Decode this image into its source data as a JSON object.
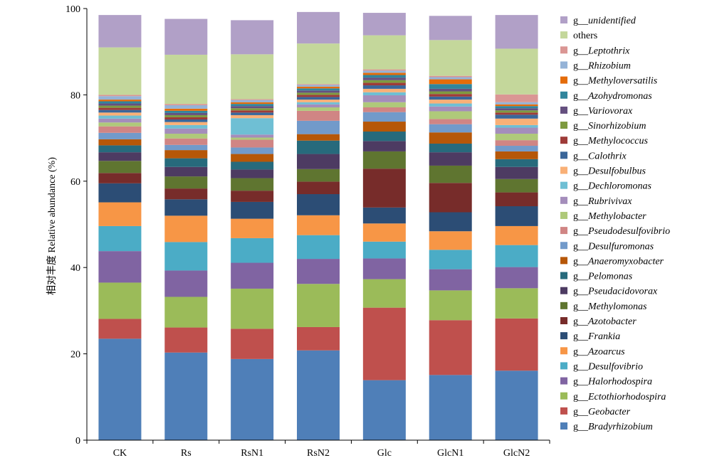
{
  "chart_data": {
    "type": "bar",
    "stacked": true,
    "title": "",
    "xlabel": "",
    "ylabel": "相对丰度 Relative abundance (%)",
    "ylim": [
      0,
      100
    ],
    "yticks": [
      0,
      20,
      40,
      60,
      80,
      100
    ],
    "grid": false,
    "legend_placement": "right",
    "categories": [
      "CK",
      "Rs",
      "RsN1",
      "RsN2",
      "Glc",
      "GlcN1",
      "GlcN2"
    ],
    "series": [
      {
        "name": "g__Bradyrhizobium",
        "color": "#4f7fb8",
        "values": [
          23.5,
          20.3,
          18.8,
          20.8,
          13.9,
          15.1,
          16.1
        ]
      },
      {
        "name": "g__Geobacter",
        "color": "#bf504d",
        "values": [
          4.6,
          5.8,
          7.0,
          5.4,
          16.8,
          12.7,
          12.1
        ]
      },
      {
        "name": "g__Ectothiorhodospira",
        "color": "#9bbb59",
        "values": [
          8.4,
          7.1,
          9.3,
          10.0,
          6.6,
          6.9,
          7.0
        ]
      },
      {
        "name": "g__Halorhodospira",
        "color": "#8064a2",
        "values": [
          7.3,
          6.1,
          6.0,
          5.8,
          4.8,
          4.9,
          4.9
        ]
      },
      {
        "name": "g__Desulfovibrio",
        "color": "#4bacc6",
        "values": [
          5.8,
          6.6,
          5.7,
          5.5,
          3.9,
          4.5,
          5.1
        ]
      },
      {
        "name": "g__Azoarcus",
        "color": "#f79646",
        "values": [
          5.5,
          6.1,
          4.5,
          4.6,
          4.2,
          4.3,
          4.4
        ]
      },
      {
        "name": "g__Frankia",
        "color": "#2c4d75",
        "values": [
          4.4,
          3.8,
          3.9,
          4.9,
          3.7,
          4.4,
          4.6
        ]
      },
      {
        "name": "g__Azotobacter",
        "color": "#772c2a",
        "values": [
          2.4,
          2.5,
          2.6,
          2.9,
          9.0,
          6.8,
          3.2
        ]
      },
      {
        "name": "g__Methylomonas",
        "color": "#5f7530",
        "values": [
          2.8,
          2.8,
          2.9,
          2.9,
          4.0,
          4.0,
          3.1
        ]
      },
      {
        "name": "g__Pseudacidovorax",
        "color": "#4d3b62",
        "values": [
          2.0,
          2.2,
          2.0,
          3.5,
          2.4,
          3.1,
          2.8
        ]
      },
      {
        "name": "g__Pelomonas",
        "color": "#276a7c",
        "values": [
          1.6,
          2.0,
          1.8,
          3.1,
          2.2,
          2.0,
          1.8
        ]
      },
      {
        "name": "g__Anaeromyxobacter",
        "color": "#b65708",
        "values": [
          1.4,
          1.9,
          1.8,
          1.5,
          2.3,
          2.6,
          1.8
        ]
      },
      {
        "name": "g__Desulfuromonas",
        "color": "#729aca",
        "values": [
          1.5,
          1.2,
          1.5,
          3.1,
          2.2,
          1.9,
          1.3
        ]
      },
      {
        "name": "g__Pseudodesulfovibrio",
        "color": "#d08584",
        "values": [
          1.5,
          1.5,
          1.8,
          2.3,
          1.1,
          1.2,
          1.3
        ]
      },
      {
        "name": "g__Methylobacter",
        "color": "#afc97a",
        "values": [
          0.9,
          1.1,
          0.5,
          0.8,
          1.2,
          1.8,
          1.5
        ]
      },
      {
        "name": "g__Rubrivivax",
        "color": "#a48dbb",
        "values": [
          0.9,
          1.2,
          0.7,
          0.7,
          1.6,
          1.1,
          1.4
        ]
      },
      {
        "name": "g__Dechloromonas",
        "color": "#6fbfd4",
        "values": [
          0.7,
          0.8,
          3.8,
          0.5,
          0.7,
          0.7,
          0.6
        ]
      },
      {
        "name": "g__Desulfobulbus",
        "color": "#f9b077",
        "values": [
          0.7,
          0.7,
          0.7,
          0.6,
          0.8,
          0.9,
          1.5
        ]
      },
      {
        "name": "g__Calothrix",
        "color": "#3a6699",
        "values": [
          0.6,
          0.6,
          0.6,
          0.6,
          0.8,
          0.7,
          0.9
        ]
      },
      {
        "name": "g__Methylococcus",
        "color": "#9e3b38",
        "values": [
          0.5,
          0.5,
          0.5,
          0.5,
          0.6,
          0.6,
          0.5
        ]
      },
      {
        "name": "g__Sinorhizobium",
        "color": "#7e9a40",
        "values": [
          0.5,
          0.5,
          0.5,
          0.5,
          0.6,
          0.6,
          0.5
        ]
      },
      {
        "name": "g__Variovorax",
        "color": "#65507f",
        "values": [
          0.5,
          0.5,
          0.5,
          0.5,
          0.6,
          0.6,
          0.5
        ]
      },
      {
        "name": "g__Azohydromonas",
        "color": "#31859c",
        "values": [
          0.5,
          0.5,
          0.5,
          0.5,
          0.6,
          1.1,
          0.5
        ]
      },
      {
        "name": "g__Methyloversatilis",
        "color": "#e46c0a",
        "values": [
          0.4,
          0.5,
          0.4,
          0.4,
          0.5,
          1.1,
          0.4
        ]
      },
      {
        "name": "g__Rhizobium",
        "color": "#95b3d7",
        "values": [
          0.8,
          0.8,
          0.5,
          0.4,
          0.5,
          0.5,
          0.5
        ]
      },
      {
        "name": "g__Leptothrix",
        "color": "#da9694",
        "values": [
          0.3,
          0.3,
          0.2,
          0.2,
          0.3,
          0.3,
          1.8
        ]
      },
      {
        "name": "others",
        "color": "#c4d79b",
        "values": [
          11.0,
          11.4,
          10.4,
          9.4,
          7.9,
          8.3,
          10.6
        ]
      },
      {
        "name": "g__unidentified",
        "color": "#b1a0c7",
        "values": [
          7.5,
          8.3,
          7.9,
          7.3,
          5.2,
          5.6,
          7.8
        ]
      }
    ]
  }
}
